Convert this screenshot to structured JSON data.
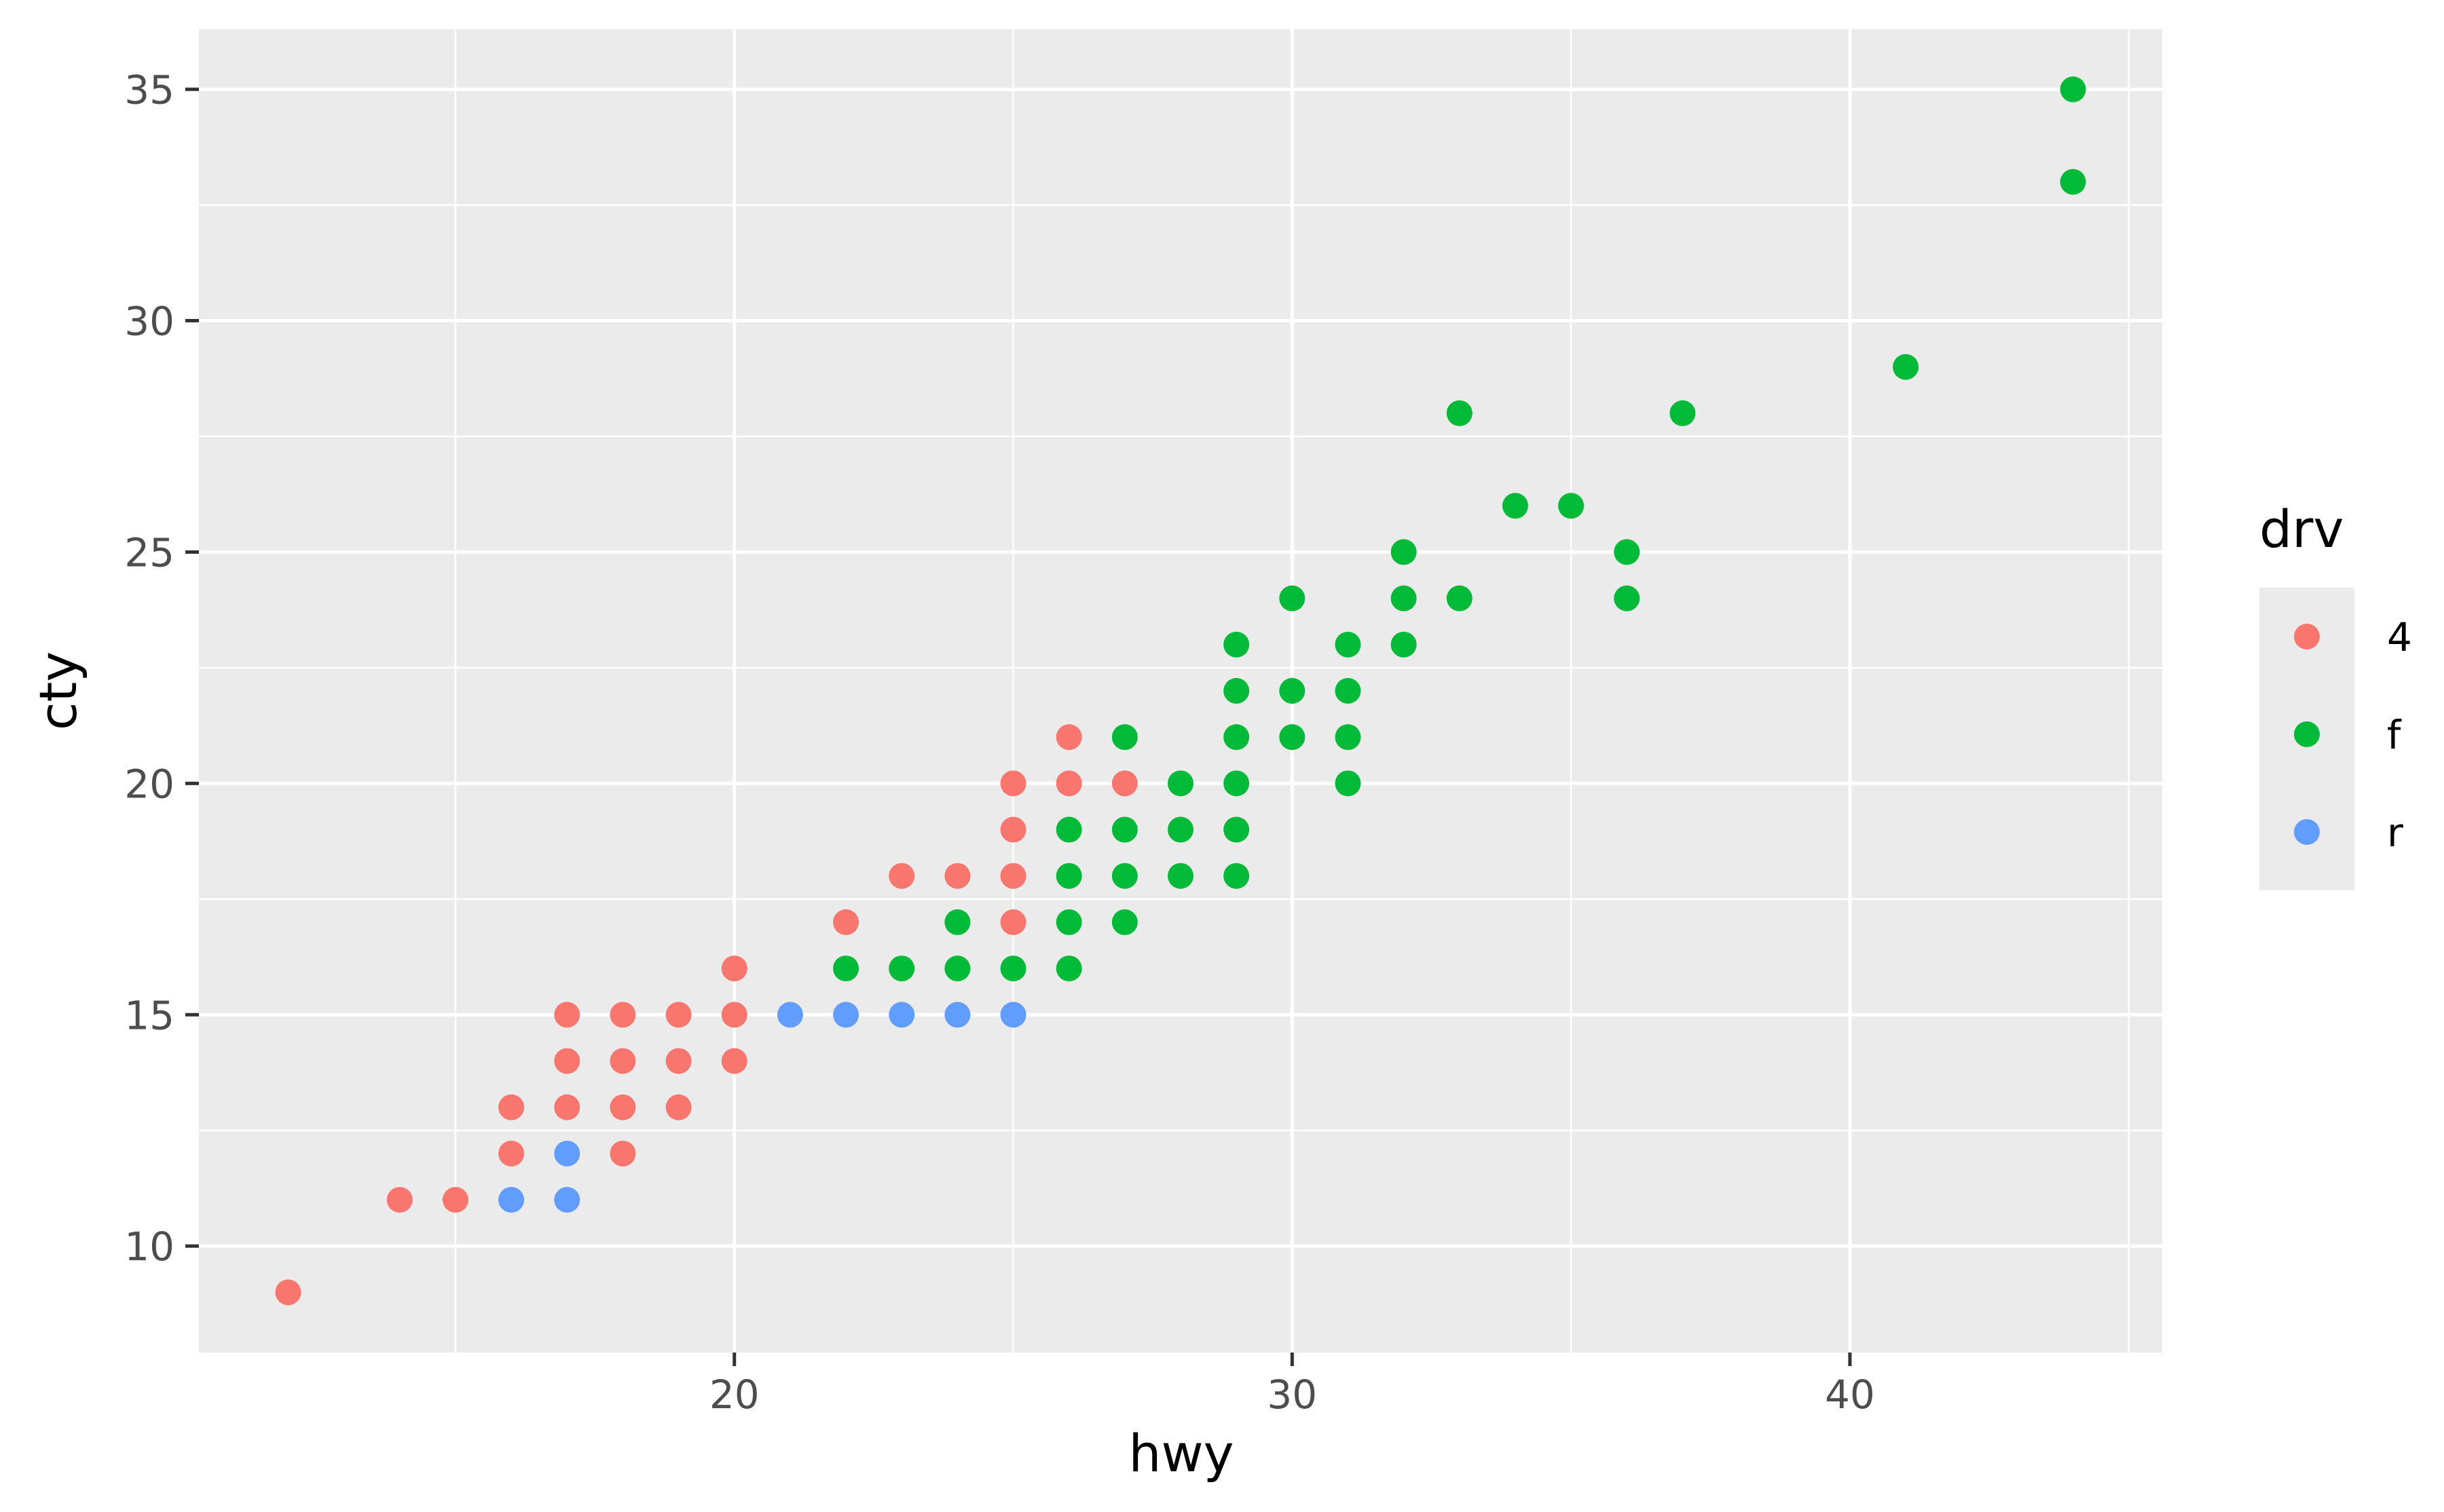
{
  "chart_data": {
    "type": "scatter",
    "title": "",
    "xlabel": "hwy",
    "ylabel": "cty",
    "xlim": [
      10.4,
      45.6
    ],
    "ylim": [
      7.7,
      36.3
    ],
    "x_ticks": [
      20,
      30,
      40
    ],
    "x_minor_ticks": [
      15,
      25,
      35,
      45
    ],
    "y_ticks": [
      10,
      15,
      20,
      25,
      30,
      35
    ],
    "y_minor_ticks": [
      12.5,
      17.5,
      22.5,
      27.5,
      32.5
    ],
    "grid": true,
    "panel_background": "#ebebeb",
    "grid_color": "#ffffff",
    "legend": {
      "title": "drv",
      "position": "right",
      "background": "#ebebeb"
    },
    "series": [
      {
        "name": "4",
        "color": "#f8766d",
        "points": [
          [
            12,
            9
          ],
          [
            14,
            11
          ],
          [
            15,
            11
          ],
          [
            16,
            12
          ],
          [
            16,
            13
          ],
          [
            17,
            13
          ],
          [
            17,
            14
          ],
          [
            17,
            15
          ],
          [
            18,
            12
          ],
          [
            18,
            13
          ],
          [
            18,
            14
          ],
          [
            18,
            15
          ],
          [
            19,
            13
          ],
          [
            19,
            14
          ],
          [
            19,
            15
          ],
          [
            20,
            14
          ],
          [
            20,
            15
          ],
          [
            20,
            16
          ],
          [
            22,
            17
          ],
          [
            23,
            18
          ],
          [
            24,
            18
          ],
          [
            25,
            17
          ],
          [
            25,
            18
          ],
          [
            25,
            19
          ],
          [
            25,
            20
          ],
          [
            26,
            20
          ],
          [
            26,
            21
          ],
          [
            27,
            20
          ]
        ]
      },
      {
        "name": "f",
        "color": "#00ba38",
        "points": [
          [
            22,
            16
          ],
          [
            23,
            16
          ],
          [
            24,
            16
          ],
          [
            24,
            17
          ],
          [
            25,
            16
          ],
          [
            26,
            16
          ],
          [
            26,
            17
          ],
          [
            26,
            18
          ],
          [
            26,
            19
          ],
          [
            27,
            17
          ],
          [
            27,
            18
          ],
          [
            27,
            19
          ],
          [
            27,
            21
          ],
          [
            28,
            18
          ],
          [
            28,
            19
          ],
          [
            28,
            20
          ],
          [
            29,
            18
          ],
          [
            29,
            19
          ],
          [
            29,
            20
          ],
          [
            29,
            21
          ],
          [
            29,
            22
          ],
          [
            29,
            23
          ],
          [
            30,
            21
          ],
          [
            30,
            22
          ],
          [
            30,
            24
          ],
          [
            31,
            20
          ],
          [
            31,
            21
          ],
          [
            31,
            22
          ],
          [
            31,
            23
          ],
          [
            32,
            23
          ],
          [
            32,
            24
          ],
          [
            32,
            25
          ],
          [
            33,
            24
          ],
          [
            33,
            28
          ],
          [
            34,
            26
          ],
          [
            35,
            26
          ],
          [
            36,
            24
          ],
          [
            36,
            25
          ],
          [
            37,
            28
          ],
          [
            41,
            29
          ],
          [
            44,
            33
          ],
          [
            44,
            35
          ]
        ]
      },
      {
        "name": "r",
        "color": "#619cff",
        "points": [
          [
            16,
            11
          ],
          [
            17,
            11
          ],
          [
            17,
            12
          ],
          [
            21,
            15
          ],
          [
            22,
            15
          ],
          [
            23,
            15
          ],
          [
            24,
            15
          ],
          [
            25,
            15
          ]
        ]
      }
    ]
  }
}
